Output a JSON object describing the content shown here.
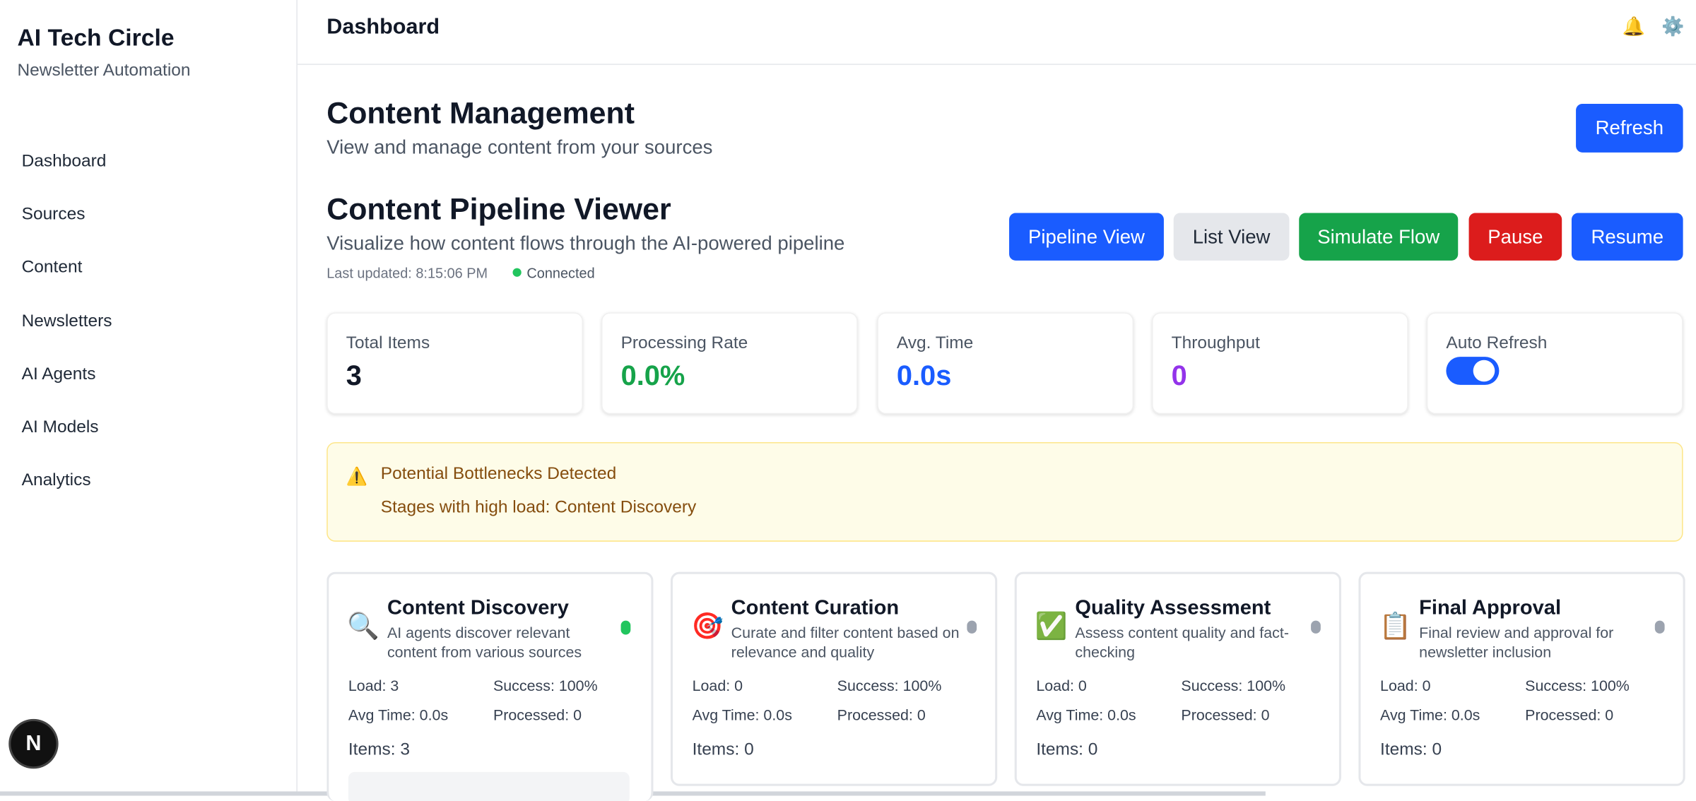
{
  "sidebar": {
    "title": "AI Tech Circle",
    "subtitle": "Newsletter Automation",
    "nav": [
      "Dashboard",
      "Sources",
      "Content",
      "Newsletters",
      "AI Agents",
      "AI Models",
      "Analytics"
    ]
  },
  "header": {
    "title": "Dashboard",
    "icons": [
      "🔔",
      "⚙️"
    ]
  },
  "page": {
    "title": "Content Management",
    "subtitle": "View and manage content from your sources",
    "refresh": "Refresh"
  },
  "pipeline": {
    "title": "Content Pipeline Viewer",
    "subtitle": "Visualize how content flows through the AI-powered pipeline",
    "last_updated": "Last updated: 8:15:06 PM",
    "status": "Connected",
    "buttons": [
      "Pipeline View",
      "List View",
      "Simulate Flow",
      "Pause",
      "Resume"
    ]
  },
  "stats": [
    {
      "label": "Total Items",
      "value": "3"
    },
    {
      "label": "Processing Rate",
      "value": "0.0%"
    },
    {
      "label": "Avg. Time",
      "value": "0.0s"
    },
    {
      "label": "Throughput",
      "value": "0"
    },
    {
      "label": "Auto Refresh"
    }
  ],
  "alert": {
    "icon": "⚠️",
    "title": "Potential Bottlenecks Detected",
    "text": "Stages with high load: Content Discovery"
  },
  "stages": [
    {
      "icon": "🔍",
      "name": "Content Discovery",
      "description": "AI agents discover relevant content from various sources",
      "load": "Load: 3",
      "success": "Success: 100%",
      "avg_time": "Avg Time: 0.0s",
      "processed": "Processed: 0",
      "items": "Items: 3"
    },
    {
      "icon": "🎯",
      "name": "Content Curation",
      "description": "Curate and filter content based on relevance and quality",
      "load": "Load: 0",
      "success": "Success: 100%",
      "avg_time": "Avg Time: 0.0s",
      "processed": "Processed: 0",
      "items": "Items: 0"
    },
    {
      "icon": "✅",
      "name": "Quality Assessment",
      "description": "Assess content quality and fact-checking",
      "load": "Load: 0",
      "success": "Success: 100%",
      "avg_time": "Avg Time: 0.0s",
      "processed": "Processed: 0",
      "items": "Items: 0"
    },
    {
      "icon": "📋",
      "name": "Final Approval",
      "description": "Final review and approval for newsletter inclusion",
      "load": "Load: 0",
      "success": "Success: 100%",
      "avg_time": "Avg Time: 0.0s",
      "processed": "Processed: 0",
      "items": "Items: 0"
    }
  ],
  "badge": "N"
}
